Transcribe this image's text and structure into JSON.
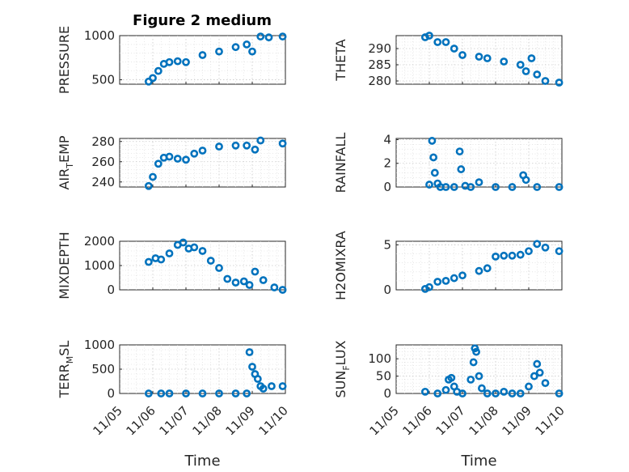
{
  "figure": {
    "title": "Figure 2 medium",
    "background": "#ffffff",
    "marker_color": "#0072bd"
  },
  "chart_data": [
    {
      "type": "scatter",
      "title": "Figure 2 medium",
      "ylabel": "PRESSURE",
      "ylabel_parts": [
        "PRESSURE"
      ],
      "xlim": [
        "2020-11-05",
        "2020-11-10"
      ],
      "ylim": [
        450,
        1000
      ],
      "yticks": [
        500,
        1000
      ],
      "xticklabels": [],
      "x": [
        "11/05 21:00",
        "11/06 00:00",
        "11/06 04:00",
        "11/06 08:00",
        "11/06 12:00",
        "11/06 18:00",
        "11/07 00:00",
        "11/07 12:00",
        "11/08 00:00",
        "11/08 12:00",
        "11/08 20:00",
        "11/09 00:00",
        "11/09 06:00",
        "11/09 12:00",
        "11/09 22:00"
      ],
      "y": [
        480,
        520,
        600,
        680,
        700,
        710,
        700,
        780,
        820,
        870,
        900,
        820,
        990,
        980,
        990
      ]
    },
    {
      "type": "scatter",
      "ylabel": "THETA",
      "ylabel_parts": [
        "THETA"
      ],
      "xlim": [
        "2020-11-05",
        "2020-11-10"
      ],
      "ylim": [
        279,
        294
      ],
      "yticks": [
        280,
        285,
        290
      ],
      "xticklabels": [],
      "x": [
        "11/05 21:00",
        "11/06 00:00",
        "11/06 06:00",
        "11/06 12:00",
        "11/06 18:00",
        "11/07 00:00",
        "11/07 12:00",
        "11/07 18:00",
        "11/08 06:00",
        "11/08 18:00",
        "11/08 22:00",
        "11/09 02:00",
        "11/09 06:00",
        "11/09 12:00",
        "11/09 22:00"
      ],
      "y": [
        293.5,
        294,
        292,
        292,
        290,
        288,
        287.5,
        287,
        286,
        285,
        283,
        287,
        282,
        280,
        279.5
      ]
    },
    {
      "type": "scatter",
      "ylabel": "AIR_TEMP",
      "ylabel_parts": [
        "AIR",
        "T",
        "EMP"
      ],
      "xlim": [
        "2020-11-05",
        "2020-11-10"
      ],
      "ylim": [
        235,
        283
      ],
      "yticks": [
        240,
        260,
        280
      ],
      "xticklabels": [],
      "x": [
        "11/05 21:00",
        "11/06 00:00",
        "11/06 04:00",
        "11/06 08:00",
        "11/06 12:00",
        "11/06 18:00",
        "11/07 00:00",
        "11/07 06:00",
        "11/07 12:00",
        "11/08 00:00",
        "11/08 12:00",
        "11/08 20:00",
        "11/09 02:00",
        "11/09 06:00",
        "11/09 22:00"
      ],
      "y": [
        236,
        245,
        258,
        264,
        265,
        263,
        262,
        268,
        271,
        275,
        276,
        276,
        272,
        281,
        278
      ]
    },
    {
      "type": "scatter",
      "ylabel": "RAINFALL",
      "ylabel_parts": [
        "RAINFALL"
      ],
      "xlim": [
        "2020-11-05",
        "2020-11-10"
      ],
      "ylim": [
        0,
        4.1
      ],
      "yticks": [
        0,
        2,
        4
      ],
      "xticklabels": [],
      "x": [
        "11/06 00:00",
        "11/06 02:00",
        "11/06 03:00",
        "11/06 04:00",
        "11/06 06:00",
        "11/06 08:00",
        "11/06 12:00",
        "11/06 18:00",
        "11/06 22:00",
        "11/06 23:00",
        "11/07 02:00",
        "11/07 06:00",
        "11/07 12:00",
        "11/08 00:00",
        "11/08 12:00",
        "11/08 20:00",
        "11/08 22:00",
        "11/09 06:00",
        "11/09 22:00"
      ],
      "y": [
        0.2,
        3.9,
        2.5,
        1.2,
        0.3,
        0,
        0,
        0,
        3.0,
        1.5,
        0.1,
        0,
        0.4,
        0,
        0,
        1.0,
        0.6,
        0,
        0
      ]
    },
    {
      "type": "scatter",
      "ylabel": "MIXDEPTH",
      "ylabel_parts": [
        "MIXDEPTH"
      ],
      "xlim": [
        "2020-11-05",
        "2020-11-10"
      ],
      "ylim": [
        0,
        2000
      ],
      "yticks": [
        0,
        1000,
        2000
      ],
      "xticklabels": [],
      "x": [
        "11/05 21:00",
        "11/06 02:00",
        "11/06 06:00",
        "11/06 12:00",
        "11/06 18:00",
        "11/06 22:00",
        "11/07 02:00",
        "11/07 06:00",
        "11/07 12:00",
        "11/07 18:00",
        "11/08 00:00",
        "11/08 06:00",
        "11/08 12:00",
        "11/08 18:00",
        "11/08 22:00",
        "11/09 02:00",
        "11/09 08:00",
        "11/09 16:00",
        "11/09 22:00"
      ],
      "y": [
        1150,
        1300,
        1250,
        1500,
        1850,
        1950,
        1700,
        1750,
        1600,
        1200,
        900,
        450,
        300,
        350,
        200,
        750,
        400,
        100,
        0
      ]
    },
    {
      "type": "scatter",
      "ylabel": "H2OMIXRA",
      "ylabel_parts": [
        "H2OMIXRA"
      ],
      "xlim": [
        "2020-11-05",
        "2020-11-10"
      ],
      "ylim": [
        0,
        5.4
      ],
      "yticks": [
        0,
        5
      ],
      "xticklabels": [],
      "x": [
        "11/05 21:00",
        "11/06 00:00",
        "11/06 06:00",
        "11/06 12:00",
        "11/06 18:00",
        "11/07 00:00",
        "11/07 12:00",
        "11/07 18:00",
        "11/08 00:00",
        "11/08 06:00",
        "11/08 12:00",
        "11/08 18:00",
        "11/09 00:00",
        "11/09 06:00",
        "11/09 12:00",
        "11/09 22:00"
      ],
      "y": [
        0.1,
        0.3,
        0.9,
        1.0,
        1.3,
        1.6,
        2.1,
        2.4,
        3.7,
        3.8,
        3.8,
        3.9,
        4.3,
        5.1,
        4.7,
        4.3
      ]
    },
    {
      "type": "scatter",
      "ylabel": "TERR_MSL",
      "ylabel_parts": [
        "TERR",
        "M",
        "SL"
      ],
      "xlim": [
        "2020-11-05",
        "2020-11-10"
      ],
      "ylim": [
        0,
        1000
      ],
      "yticks": [
        0,
        500,
        1000
      ],
      "xticklabels": [
        "11/05",
        "11/06",
        "11/07",
        "11/08",
        "11/09",
        "11/10"
      ],
      "xlabel": "Time",
      "x": [
        "11/05 21:00",
        "11/06 06:00",
        "11/06 12:00",
        "11/07 00:00",
        "11/07 12:00",
        "11/08 00:00",
        "11/08 12:00",
        "11/08 20:00",
        "11/08 22:00",
        "11/09 00:00",
        "11/09 02:00",
        "11/09 04:00",
        "11/09 06:00",
        "11/09 08:00",
        "11/09 14:00",
        "11/09 22:00"
      ],
      "y": [
        0,
        0,
        0,
        0,
        0,
        0,
        0,
        0,
        850,
        550,
        400,
        300,
        150,
        100,
        150,
        150
      ]
    },
    {
      "type": "scatter",
      "ylabel": "SUN_FLUX",
      "ylabel_parts": [
        "SUN",
        "F",
        "LUX"
      ],
      "xlim": [
        "2020-11-05",
        "2020-11-10"
      ],
      "ylim": [
        0,
        140
      ],
      "yticks": [
        0,
        50,
        100
      ],
      "xticklabels": [
        "11/05",
        "11/06",
        "11/07",
        "11/08",
        "11/09",
        "11/10"
      ],
      "xlabel": "Time",
      "x": [
        "11/05 21:00",
        "11/06 06:00",
        "11/06 12:00",
        "11/06 14:00",
        "11/06 16:00",
        "11/06 18:00",
        "11/06 20:00",
        "11/07 00:00",
        "11/07 06:00",
        "11/07 08:00",
        "11/07 09:00",
        "11/07 10:00",
        "11/07 12:00",
        "11/07 14:00",
        "11/07 18:00",
        "11/08 00:00",
        "11/08 06:00",
        "11/08 12:00",
        "11/08 18:00",
        "11/09 00:00",
        "11/09 04:00",
        "11/09 06:00",
        "11/09 08:00",
        "11/09 12:00",
        "11/09 22:00"
      ],
      "y": [
        5,
        0,
        10,
        40,
        45,
        20,
        5,
        0,
        40,
        90,
        130,
        120,
        50,
        15,
        0,
        0,
        5,
        0,
        0,
        20,
        50,
        85,
        60,
        30,
        0
      ]
    }
  ]
}
